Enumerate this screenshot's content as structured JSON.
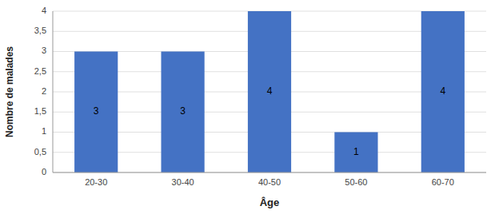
{
  "chart_data": {
    "type": "bar",
    "xlabel": "Âge",
    "ylabel": "Nombre de malades",
    "categories": [
      "20-30",
      "30-40",
      "40-50",
      "50-60",
      "60-70"
    ],
    "values": [
      3,
      3,
      4,
      1,
      4
    ],
    "color": "#4472C4",
    "ylim": [
      0,
      4
    ],
    "yticks": [
      0,
      {
        "value": 0.5,
        "label": "0,5"
      },
      1,
      {
        "value": 1.5,
        "label": "1,5"
      },
      2,
      {
        "value": 2.5,
        "label": "2,5"
      },
      3,
      {
        "value": 3.5,
        "label": "3,5"
      },
      4
    ],
    "grid": true,
    "data_labels": true
  }
}
